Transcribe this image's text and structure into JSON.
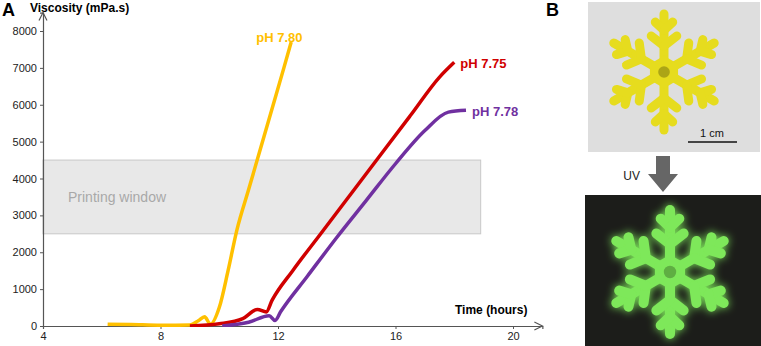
{
  "chart_data": {
    "type": "line",
    "panel_label": "A",
    "y_label": "Viscosity (mPa.s)",
    "x_label": "Time (hours)",
    "xlim": [
      4,
      21
    ],
    "xticks": [
      4,
      8,
      12,
      16,
      20
    ],
    "ylim": [
      0,
      8500
    ],
    "yticks": [
      0,
      1000,
      2000,
      3000,
      4000,
      5000,
      6000,
      7000,
      8000
    ],
    "grid": false,
    "annotations": [
      {
        "text": "Printing window",
        "x_range": [
          4,
          18.9
        ],
        "y_range": [
          2500,
          4500
        ]
      }
    ],
    "series": [
      {
        "name": "pH 7.80",
        "color": "#ffc000",
        "x": [
          6.2,
          7,
          8,
          9,
          9.3,
          9.5,
          9.7,
          10,
          10.3,
          10.6,
          11,
          11.4,
          11.8,
          12.2,
          12.45
        ],
        "values": [
          50,
          40,
          20,
          30,
          150,
          250,
          50,
          500,
          1500,
          2600,
          3700,
          4800,
          5900,
          7000,
          7700
        ]
      },
      {
        "name": "pH 7.75",
        "color": "#d00000",
        "x": [
          9,
          10,
          10.8,
          11.3,
          11.6,
          11.8,
          12.5,
          13.5,
          14.5,
          15.5,
          16.5,
          17.5,
          18.0
        ],
        "values": [
          0,
          60,
          200,
          450,
          380,
          700,
          1500,
          2550,
          3600,
          4650,
          5700,
          6750,
          7150
        ]
      },
      {
        "name": "pH 7.78",
        "color": "#7030a0",
        "x": [
          10.1,
          11,
          11.7,
          11.9,
          12.1,
          13,
          14,
          15,
          16,
          17,
          17.8,
          18.4
        ],
        "values": [
          0,
          100,
          280,
          150,
          400,
          1350,
          2400,
          3400,
          4400,
          5300,
          5800,
          5850
        ]
      }
    ]
  },
  "figure": {
    "panel_label": "B",
    "scale_bar": "1 cm",
    "arrow_label": "UV"
  }
}
